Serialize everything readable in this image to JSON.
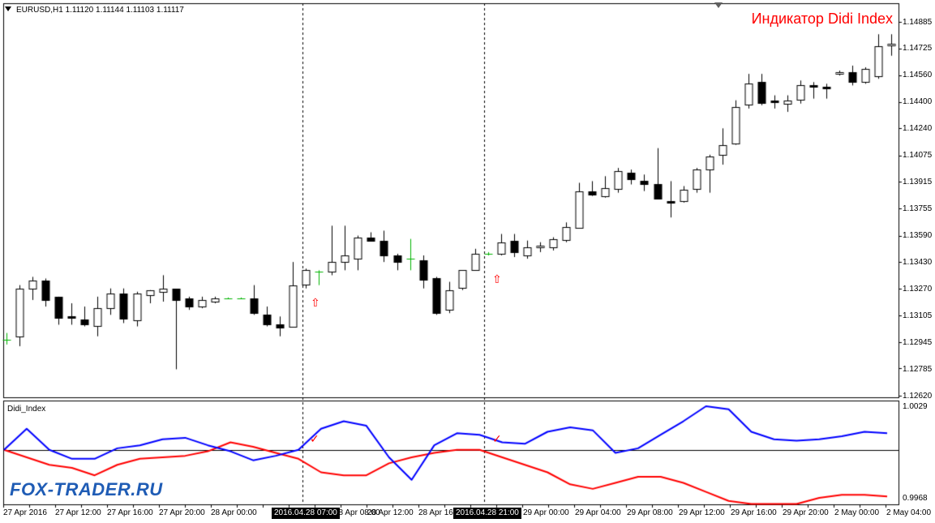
{
  "header": {
    "symbol_info": "EURUSD,H1  1.11120 1.11144 1.11103 1.11117"
  },
  "indicator_title": "Индикатор Didi Index",
  "indicator_name": "Didi_Index",
  "watermark": "FOX-TRADER.RU",
  "price_axis": {
    "labels": [
      "1.14885",
      "1.14725",
      "1.14560",
      "1.14400",
      "1.14240",
      "1.14075",
      "1.13915",
      "1.13755",
      "1.13590",
      "1.13430",
      "1.13270",
      "1.13105",
      "1.12945",
      "1.12785",
      "1.12620"
    ],
    "min": 1.1262,
    "max": 1.14885
  },
  "indicator_axis": {
    "top": "1.0029",
    "bottom": "0.9968",
    "min": 0.9968,
    "max": 1.0029,
    "zero": 1.0
  },
  "time_axis": {
    "labels": [
      "27 Apr 2016",
      "27 Apr 12:00",
      "27 Apr 16:00",
      "27 Apr 20:00",
      "28 Apr 00:00",
      "28 Apr 08:00",
      "28 Apr 12:00",
      "28 Apr 16",
      "29 Apr 00:00",
      "29 Apr 04:00",
      "29 Apr 08:00",
      "29 Apr 12:00",
      "29 Apr 16:00",
      "29 Apr 20:00",
      "2 May 00:00",
      "2 May 04:00"
    ],
    "highlights": [
      "2016.04.28 07:00",
      "2016.04.28 21:00"
    ]
  },
  "signals": {
    "up_arrow": "⇧",
    "check": "✓"
  },
  "colors": {
    "bull_body": "#ffffff",
    "bear_body": "#000000",
    "doji": "#00b400",
    "fast_line": "#0000ff",
    "slow_line": "#ff0000",
    "zero_line": "#000000",
    "signal": "#ff0000",
    "watermark": "#1f5cb5"
  },
  "chart_data": {
    "type": "candlestick",
    "candles": [
      {
        "o": 1.1296,
        "h": 1.13,
        "l": 1.1293,
        "c": 1.1296
      },
      {
        "o": 1.1298,
        "h": 1.1329,
        "l": 1.1292,
        "c": 1.1327
      },
      {
        "o": 1.1327,
        "h": 1.1334,
        "l": 1.132,
        "c": 1.1332
      },
      {
        "o": 1.1332,
        "h": 1.1333,
        "l": 1.1316,
        "c": 1.132
      },
      {
        "o": 1.1322,
        "h": 1.1322,
        "l": 1.1305,
        "c": 1.1309
      },
      {
        "o": 1.131,
        "h": 1.1318,
        "l": 1.1305,
        "c": 1.1309
      },
      {
        "o": 1.1308,
        "h": 1.1316,
        "l": 1.1304,
        "c": 1.1305
      },
      {
        "o": 1.1304,
        "h": 1.1322,
        "l": 1.1298,
        "c": 1.1315
      },
      {
        "o": 1.1315,
        "h": 1.1327,
        "l": 1.1311,
        "c": 1.1324
      },
      {
        "o": 1.1324,
        "h": 1.1327,
        "l": 1.1306,
        "c": 1.1309
      },
      {
        "o": 1.1308,
        "h": 1.1325,
        "l": 1.1304,
        "c": 1.1324
      },
      {
        "o": 1.1323,
        "h": 1.1326,
        "l": 1.1318,
        "c": 1.1326
      },
      {
        "o": 1.1325,
        "h": 1.1335,
        "l": 1.1319,
        "c": 1.1327
      },
      {
        "o": 1.1327,
        "h": 1.1326,
        "l": 1.1278,
        "c": 1.132
      },
      {
        "o": 1.1321,
        "h": 1.1322,
        "l": 1.1314,
        "c": 1.1316
      },
      {
        "o": 1.1316,
        "h": 1.1322,
        "l": 1.1315,
        "c": 1.132
      },
      {
        "o": 1.1319,
        "h": 1.1322,
        "l": 1.1318,
        "c": 1.1321
      },
      {
        "o": 1.1321,
        "h": 1.13215,
        "l": 1.13205,
        "c": 1.1321
      },
      {
        "o": 1.1321,
        "h": 1.13215,
        "l": 1.13205,
        "c": 1.1321
      },
      {
        "o": 1.1321,
        "h": 1.1329,
        "l": 1.1311,
        "c": 1.1312
      },
      {
        "o": 1.1311,
        "h": 1.1316,
        "l": 1.1304,
        "c": 1.1305
      },
      {
        "o": 1.1305,
        "h": 1.131,
        "l": 1.1298,
        "c": 1.1303
      },
      {
        "o": 1.1304,
        "h": 1.1343,
        "l": 1.1304,
        "c": 1.1329
      },
      {
        "o": 1.1329,
        "h": 1.1339,
        "l": 1.1327,
        "c": 1.1338
      },
      {
        "o": 1.1337,
        "h": 1.1338,
        "l": 1.1329,
        "c": 1.1337
      },
      {
        "o": 1.1337,
        "h": 1.1365,
        "l": 1.1335,
        "c": 1.1343
      },
      {
        "o": 1.1343,
        "h": 1.1365,
        "l": 1.1338,
        "c": 1.1347
      },
      {
        "o": 1.1345,
        "h": 1.1359,
        "l": 1.1338,
        "c": 1.1358
      },
      {
        "o": 1.1358,
        "h": 1.1361,
        "l": 1.1356,
        "c": 1.1356
      },
      {
        "o": 1.1356,
        "h": 1.1362,
        "l": 1.1343,
        "c": 1.1347
      },
      {
        "o": 1.1347,
        "h": 1.1348,
        "l": 1.1338,
        "c": 1.1343
      },
      {
        "o": 1.1345,
        "h": 1.1357,
        "l": 1.1338,
        "c": 1.1345
      },
      {
        "o": 1.1344,
        "h": 1.1347,
        "l": 1.1327,
        "c": 1.1332
      },
      {
        "o": 1.1333,
        "h": 1.1334,
        "l": 1.1311,
        "c": 1.1312
      },
      {
        "o": 1.1314,
        "h": 1.1331,
        "l": 1.1312,
        "c": 1.1326
      },
      {
        "o": 1.1327,
        "h": 1.1338,
        "l": 1.1326,
        "c": 1.1338
      },
      {
        "o": 1.1338,
        "h": 1.1351,
        "l": 1.1338,
        "c": 1.1348
      },
      {
        "o": 1.1348,
        "h": 1.1349,
        "l": 1.1347,
        "c": 1.1348
      },
      {
        "o": 1.1348,
        "h": 1.136,
        "l": 1.1347,
        "c": 1.1355
      },
      {
        "o": 1.1356,
        "h": 1.136,
        "l": 1.1346,
        "c": 1.1349
      },
      {
        "o": 1.1347,
        "h": 1.1356,
        "l": 1.1345,
        "c": 1.1352
      },
      {
        "o": 1.1352,
        "h": 1.1355,
        "l": 1.1349,
        "c": 1.1353
      },
      {
        "o": 1.1352,
        "h": 1.1358,
        "l": 1.135,
        "c": 1.1357
      },
      {
        "o": 1.1356,
        "h": 1.1367,
        "l": 1.1355,
        "c": 1.1364
      },
      {
        "o": 1.1364,
        "h": 1.1391,
        "l": 1.1364,
        "c": 1.1386
      },
      {
        "o": 1.1386,
        "h": 1.1392,
        "l": 1.1383,
        "c": 1.1384
      },
      {
        "o": 1.1383,
        "h": 1.1395,
        "l": 1.1382,
        "c": 1.1388
      },
      {
        "o": 1.1387,
        "h": 1.14,
        "l": 1.1385,
        "c": 1.1398
      },
      {
        "o": 1.1397,
        "h": 1.1399,
        "l": 1.139,
        "c": 1.1393
      },
      {
        "o": 1.1392,
        "h": 1.1396,
        "l": 1.1386,
        "c": 1.139
      },
      {
        "o": 1.139,
        "h": 1.1412,
        "l": 1.1381,
        "c": 1.1381
      },
      {
        "o": 1.138,
        "h": 1.1392,
        "l": 1.137,
        "c": 1.1379
      },
      {
        "o": 1.138,
        "h": 1.1389,
        "l": 1.1379,
        "c": 1.1387
      },
      {
        "o": 1.1387,
        "h": 1.14,
        "l": 1.1385,
        "c": 1.1399
      },
      {
        "o": 1.1399,
        "h": 1.1408,
        "l": 1.1385,
        "c": 1.1407
      },
      {
        "o": 1.1408,
        "h": 1.1424,
        "l": 1.1402,
        "c": 1.1414
      },
      {
        "o": 1.1415,
        "h": 1.1441,
        "l": 1.1414,
        "c": 1.1437
      },
      {
        "o": 1.1438,
        "h": 1.1457,
        "l": 1.1436,
        "c": 1.1451
      },
      {
        "o": 1.1452,
        "h": 1.1457,
        "l": 1.1438,
        "c": 1.1439
      },
      {
        "o": 1.1441,
        "h": 1.1444,
        "l": 1.1436,
        "c": 1.144
      },
      {
        "o": 1.1439,
        "h": 1.1444,
        "l": 1.1434,
        "c": 1.1441
      },
      {
        "o": 1.1441,
        "h": 1.1453,
        "l": 1.1439,
        "c": 1.145
      },
      {
        "o": 1.145,
        "h": 1.1452,
        "l": 1.1442,
        "c": 1.1449
      },
      {
        "o": 1.1449,
        "h": 1.1451,
        "l": 1.1442,
        "c": 1.1448
      },
      {
        "o": 1.1457,
        "h": 1.1459,
        "l": 1.1456,
        "c": 1.1458
      },
      {
        "o": 1.1458,
        "h": 1.1462,
        "l": 1.145,
        "c": 1.1452
      },
      {
        "o": 1.1452,
        "h": 1.1461,
        "l": 1.1451,
        "c": 1.146
      },
      {
        "o": 1.1456,
        "h": 1.1481,
        "l": 1.1454,
        "c": 1.1474
      },
      {
        "o": 1.1474,
        "h": 1.1481,
        "l": 1.1468,
        "c": 1.1475
      }
    ],
    "didi_index": {
      "fast_blue": [
        1.0,
        1.0014,
        1.0,
        0.9994,
        0.9994,
        1.0001,
        1.0003,
        1.0007,
        1.0008,
        1.0003,
        0.9999,
        0.9993,
        0.9996,
        1.0,
        1.0014,
        1.0019,
        1.0016,
        0.9995,
        0.998,
        1.0003,
        1.0011,
        1.001,
        1.0005,
        1.0004,
        1.0012,
        1.0015,
        1.0013,
        0.9998,
        1.0001,
        1.001,
        1.0019,
        1.0029,
        1.0027,
        1.0012,
        1.0007,
        1.0006,
        1.0007,
        1.0009,
        1.0012,
        1.0011
      ],
      "slow_red": [
        1.0,
        0.9995,
        0.999,
        0.9988,
        0.9983,
        0.999,
        0.9994,
        0.9995,
        0.9996,
        0.9999,
        1.0005,
        1.0002,
        0.9998,
        0.9994,
        0.9985,
        0.9983,
        0.9983,
        0.9991,
        0.9995,
        0.9998,
        1.0,
        1.0,
        0.9995,
        0.999,
        0.9985,
        0.9977,
        0.9974,
        0.9978,
        0.9982,
        0.9982,
        0.9978,
        0.9972,
        0.9966,
        0.9964,
        0.9964,
        0.9964,
        0.9968,
        0.997,
        0.997,
        0.9969
      ]
    }
  }
}
